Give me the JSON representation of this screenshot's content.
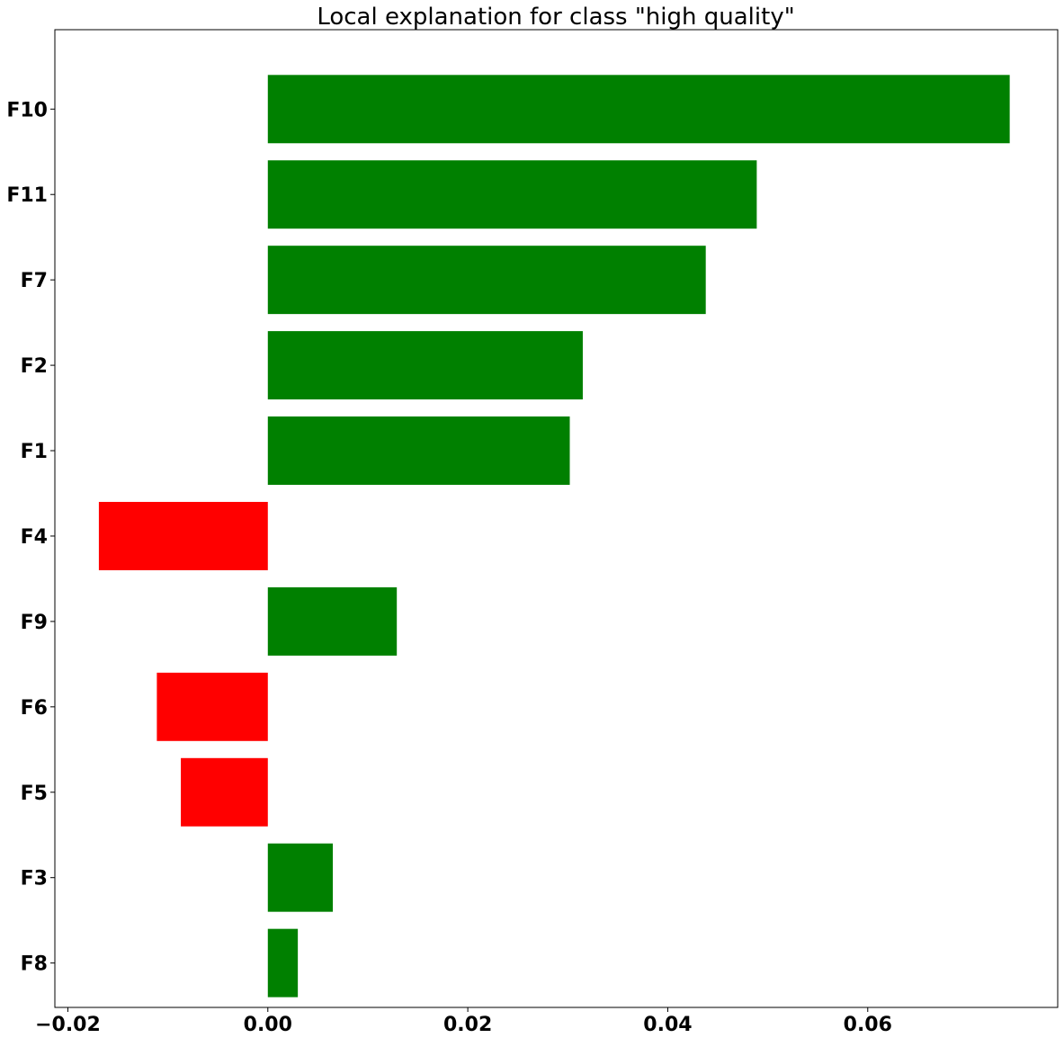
{
  "chart_data": {
    "type": "bar",
    "orientation": "horizontal",
    "title": "Local explanation for class \"high quality\"",
    "xlabel": "",
    "ylabel": "",
    "categories": [
      "F10",
      "F11",
      "F7",
      "F2",
      "F1",
      "F4",
      "F9",
      "F6",
      "F5",
      "F3",
      "F8"
    ],
    "values": [
      0.0742,
      0.0489,
      0.0438,
      0.0315,
      0.0302,
      -0.0169,
      0.0129,
      -0.0111,
      -0.0087,
      0.0065,
      0.003
    ],
    "xlim": [
      -0.0213,
      0.079
    ],
    "xticks": [
      -0.02,
      0.0,
      0.02,
      0.04,
      0.06
    ],
    "xtick_labels": [
      "−0.02",
      "0.00",
      "0.02",
      "0.04",
      "0.06"
    ],
    "positive_color": "#008000",
    "negative_color": "#ff0000",
    "grid": false,
    "legend": "none"
  }
}
